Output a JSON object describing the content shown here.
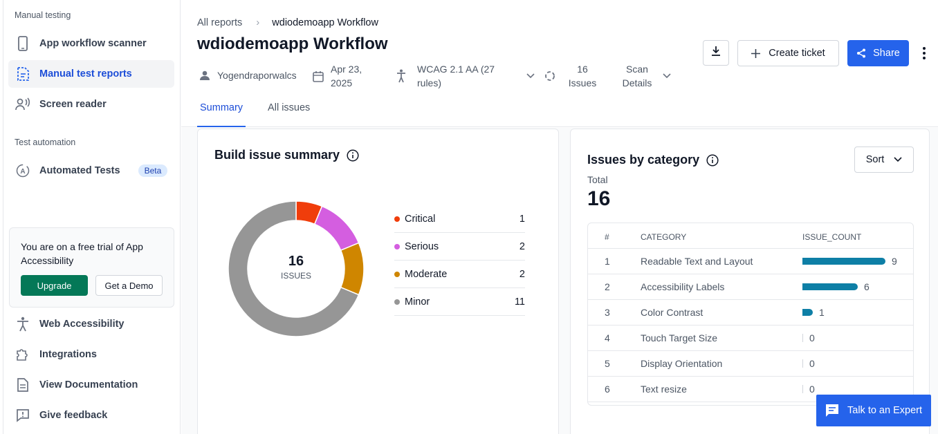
{
  "sidebar": {
    "manual_section": "Manual testing",
    "items_manual": [
      {
        "label": "App workflow scanner",
        "icon": "phone-icon"
      },
      {
        "label": "Manual test reports",
        "icon": "report-icon",
        "active": true
      },
      {
        "label": "Screen reader",
        "icon": "screen-reader-icon"
      }
    ],
    "automation_section": "Test automation",
    "automated": {
      "label": "Automated Tests",
      "badge": "Beta",
      "icon": "automation-icon"
    },
    "trial": {
      "text": "You are on a free trial of App Accessibility",
      "upgrade": "Upgrade",
      "demo": "Get a Demo"
    },
    "items_bottom": [
      {
        "label": "Web Accessibility",
        "icon": "accessibility-person-icon"
      },
      {
        "label": "Integrations",
        "icon": "puzzle-icon"
      },
      {
        "label": "View Documentation",
        "icon": "document-icon"
      },
      {
        "label": "Give feedback",
        "icon": "feedback-icon"
      }
    ]
  },
  "header": {
    "breadcrumb_root": "All reports",
    "breadcrumb_current": "wdiodemoapp Workflow",
    "title": "wdiodemoapp Workflow",
    "user": "Yogendraporwalcs",
    "date": "Apr 23, 2025",
    "wcag": "WCAG 2.1 AA (27 rules)",
    "issues": "16 Issues",
    "scan_details": "Scan Details",
    "create_ticket": "Create ticket",
    "share": "Share",
    "tabs": [
      {
        "label": "Summary",
        "active": true
      },
      {
        "label": "All issues",
        "active": false
      }
    ]
  },
  "summary": {
    "title": "Build issue summary",
    "total": "16",
    "total_label": "ISSUES",
    "severities": [
      {
        "label": "Critical",
        "count": 1,
        "color": "#f03d0b"
      },
      {
        "label": "Serious",
        "count": 2,
        "color": "#d45ee0"
      },
      {
        "label": "Moderate",
        "count": 2,
        "color": "#cf8600"
      },
      {
        "label": "Minor",
        "count": 11,
        "color": "#969696"
      }
    ]
  },
  "category": {
    "title": "Issues by category",
    "sort": "Sort",
    "total_label": "Total",
    "total": "16",
    "headers": [
      "#",
      "CATEGORY",
      "ISSUE_COUNT"
    ],
    "rows": [
      {
        "n": "1",
        "name": "Readable Text and Layout",
        "count": 9
      },
      {
        "n": "2",
        "name": "Accessibility Labels",
        "count": 6
      },
      {
        "n": "3",
        "name": "Color Contrast",
        "count": 1
      },
      {
        "n": "4",
        "name": "Touch Target Size",
        "count": 0
      },
      {
        "n": "5",
        "name": "Display Orientation",
        "count": 0
      },
      {
        "n": "6",
        "name": "Text resize",
        "count": 0
      }
    ]
  },
  "expert_button": "Talk to an Expert",
  "colors": {
    "accent": "#2563eb",
    "upgrade": "#047857",
    "bar": "#0e7fa6"
  }
}
